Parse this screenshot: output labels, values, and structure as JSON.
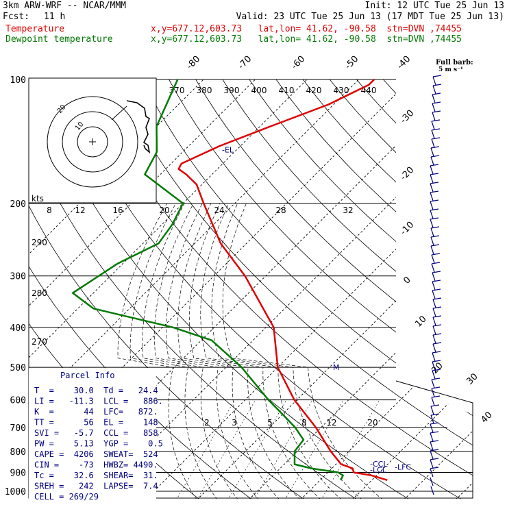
{
  "header": {
    "model": "3km ARW-WRF -- NCAR/MMM",
    "init": "Init: 12 UTC Tue 25 Jun 13",
    "fcst_label": "Fcst:",
    "fcst_value": "11 h",
    "valid": "Valid: 23 UTC Tue 25 Jun 13 (17 MDT Tue 25 Jun 13)",
    "temp_label": "Temperature",
    "temp_info": "x,y=677.12,603.73   lat,lon= 41.62, -90.58  stn=DVN ,74455",
    "dew_label": "Dewpoint temperature",
    "dew_info": "x,y=677.12,603.73   lat,lon= 41.62, -90.58  stn=DVN ,74455"
  },
  "colors": {
    "temperature": "#e00000",
    "dewpoint": "#007a00",
    "parcel_text": "#000080",
    "grid": "#000000"
  },
  "chart_data": {
    "type": "line",
    "pressure_axis_labels": [
      "100",
      "200",
      "300",
      "400",
      "500",
      "600",
      "700",
      "800",
      "900",
      "1000"
    ],
    "temperature_axis_labels": [
      "-80",
      "-70",
      "-60",
      "-50",
      "-40",
      "-30",
      "-20",
      "-10",
      "0",
      "10",
      "20",
      "30",
      "40"
    ],
    "theta_labels": [
      "370",
      "380",
      "390",
      "400",
      "410",
      "420",
      "430",
      "440"
    ],
    "dry_adiabat_labels": [
      "290",
      "280",
      "270"
    ],
    "mixing_ratio_labels": [
      "2",
      "3",
      "5",
      "8",
      "12",
      "20"
    ],
    "series": [
      {
        "name": "Temperature",
        "pressure": [
          940,
          915,
          900,
          880,
          860,
          800,
          700,
          600,
          500,
          400,
          300,
          250,
          200,
          180,
          170,
          165,
          160,
          145,
          130,
          115,
          103,
          100
        ],
        "temp_c": [
          33,
          29,
          25,
          24,
          21,
          16.5,
          9,
          -0.5,
          -10,
          -18.5,
          -34,
          -45,
          -56,
          -61,
          -65,
          -67.5,
          -68,
          -64,
          -58,
          -51,
          -47,
          -47
        ]
      },
      {
        "name": "Dewpoint temperature",
        "pressure": [
          940,
          915,
          900,
          880,
          860,
          800,
          750,
          700,
          650,
          600,
          500,
          430,
          400,
          360,
          330,
          280,
          250,
          225,
          200,
          170,
          150,
          130,
          100
        ],
        "dew_c": [
          24,
          23.5,
          22,
          16,
          12,
          9.5,
          9,
          5,
          0,
          -5.5,
          -17,
          -28,
          -38,
          -57,
          -64,
          -61,
          -57,
          -58,
          -60,
          -73,
          -75,
          -80,
          -85
        ]
      }
    ],
    "pressure_levels": [
      "100",
      "200",
      "300",
      "400",
      "500",
      "600",
      "700",
      "800",
      "900",
      "1000"
    ],
    "level_markers": [
      {
        "label": "-EL",
        "pressure": 148
      },
      {
        "label": "-CCL",
        "pressure": 858
      },
      {
        "label": "-LFC",
        "pressure": 872
      },
      {
        "label": "-LCL",
        "pressure": 886
      },
      {
        "label": "M",
        "pressure": 500
      }
    ],
    "wind_barb_title": "Full barb:",
    "wind_barb_unit": "5 m s⁻¹",
    "hodograph": {
      "unit_label": "kts",
      "speed_labels": [
        "8",
        "12",
        "16",
        "20",
        "24",
        "28",
        "32"
      ],
      "ring_labels": [
        "20",
        "10"
      ]
    }
  },
  "parcel_info": {
    "title": "Parcel Info",
    "rows": [
      "T  =    30.0  Td =   24.4",
      "LI =   -11.3  LCL =   886.",
      "K  =      44  LFC=   872.",
      "TT =      56  EL =    148",
      "SVI =   -5.7  CCL =   858",
      "PW =    5.13  YGP =    0.5",
      "CAPE =  4206  SWEAT=  524",
      "CIN =    -73  HWBZ= 4490.",
      "Tc =    32.6  SHEAR=  31.",
      "SREH =   242  LAPSE=  7.4",
      "CELL = 269/29"
    ]
  }
}
